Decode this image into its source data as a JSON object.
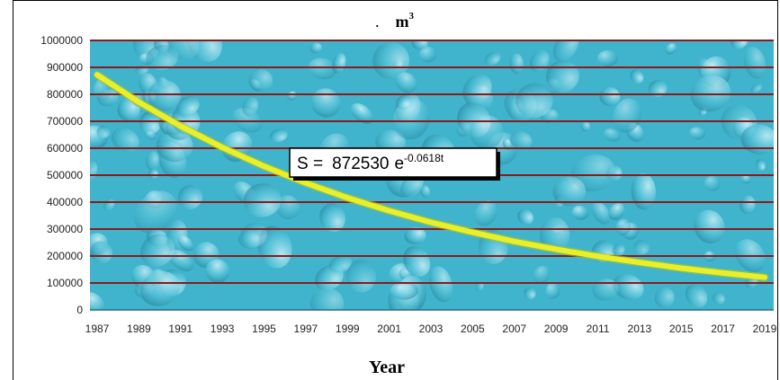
{
  "chart_data": {
    "type": "line",
    "title_prefix": ".",
    "title_unit": "m",
    "title_unit_exp": "3",
    "xlabel": "Year",
    "ylabel": "",
    "ylim": [
      0,
      1000000
    ],
    "yticks": [
      "0",
      "100000",
      "200000",
      "300000",
      "400000",
      "500000",
      "600000",
      "700000",
      "800000",
      "900000",
      "1000000"
    ],
    "xlim": [
      1987,
      2019
    ],
    "xticks": [
      "1987",
      "1989",
      "1991",
      "1993",
      "1995",
      "1997",
      "1999",
      "2001",
      "2003",
      "2005",
      "2007",
      "2009",
      "2011",
      "2013",
      "2015",
      "2017",
      "2019"
    ],
    "grid": true,
    "colors": {
      "line": "#e8f02a",
      "grid": "#8b1a1a",
      "water": "#3fb4cc"
    },
    "equation": {
      "lhs": "S =",
      "coefficient": "872530",
      "base": "e",
      "exponent": "-0.0618t"
    },
    "series": [
      {
        "x": [
          1987,
          1989,
          1991,
          1993,
          1995,
          1997,
          1999,
          2001,
          2003,
          2005,
          2007,
          2009,
          2011,
          2013,
          2015,
          2017,
          2019
        ],
        "y": [
          872530,
          771000,
          682000,
          603000,
          533000,
          471000,
          416000,
          368000,
          325000,
          288000,
          254000,
          225000,
          199000,
          176000,
          155000,
          137000,
          121000
        ]
      }
    ]
  }
}
